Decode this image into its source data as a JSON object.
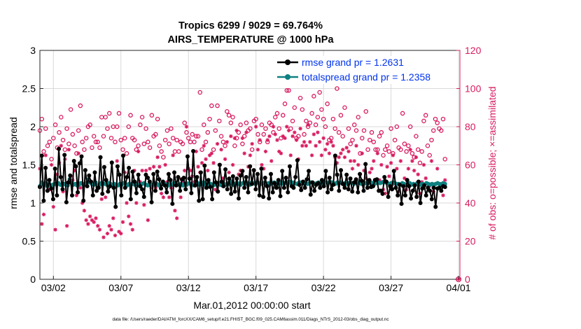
{
  "chart_data": {
    "type": "line",
    "title": "Tropics 6299 / 9029 = 69.764%",
    "subtitle": "AIRS_TEMPERATURE @ 1000 hPa",
    "xlabel": "Mar.01,2012 00:00:00 start",
    "ylabel_left": "rmse and totalspread",
    "ylabel_right": "# of obs: o=possible; ×=assimilated",
    "footnote": "data file: /Users/raeder/DAI/ATM_forcXX/CAM6_setup/f.e21.FHIST_BGC.f09_025.CAM6assim.011/Diags_NTrS_2012-03/obs_diag_output.nc",
    "xlim": [
      0,
      31.1
    ],
    "ylim_left": [
      0,
      3
    ],
    "ylim_right": [
      0,
      120
    ],
    "x_ticks": [
      1,
      6,
      11,
      16,
      21,
      26,
      31
    ],
    "x_tick_labels": [
      "03/02",
      "03/07",
      "03/12",
      "03/17",
      "03/22",
      "03/27",
      "04/01"
    ],
    "y_ticks_left": [
      "0",
      "0.5",
      "1",
      "1.5",
      "2",
      "2.5",
      "3"
    ],
    "y_ticks_right": [
      "0",
      "20",
      "40",
      "60",
      "80",
      "100",
      "120"
    ],
    "grid": true,
    "legend_position": "top-right",
    "colors": {
      "rmse": "#000000",
      "totalspread": "#0f8080",
      "obs": "#d81b60",
      "legend_text": "#0033ee",
      "right_axis": "#d81b60"
    },
    "series": [
      {
        "name": "rmse grand pr = 1.2631",
        "axis": "left",
        "values": [
          1.21,
          1.62,
          1.03,
          1.46,
          1.16,
          1.3,
          1.19,
          1.05,
          1.45,
          1.1,
          1.71,
          1.34,
          1.18,
          1.63,
          1.01,
          1.27,
          1.36,
          1.1,
          1.55,
          1.48,
          1.14,
          1.52,
          1.61,
          1.03,
          1.43,
          1.22,
          1.36,
          1.28,
          1.1,
          1.4,
          1.16,
          1.2,
          1.6,
          1.12,
          1.47,
          1.3,
          1.15,
          1.22,
          1.53,
          1.2,
          0.95,
          1.48,
          1.37,
          1.1,
          1.62,
          1.2,
          1.34,
          1.46,
          1.05,
          1.41,
          1.28,
          1.13,
          1.37,
          1.22,
          1.18,
          1.08,
          1.37,
          1.33,
          1.28,
          1.01,
          1.38,
          1.16,
          1.41,
          1.31,
          1.19,
          1.28,
          1.23,
          1.14,
          1.38,
          1.3,
          0.99,
          1.4,
          1.23,
          1.34,
          1.16,
          1.31,
          1.33,
          1.18,
          1.61,
          1.32,
          1.13,
          1.68,
          1.23,
          1.34,
          1.03,
          1.4,
          1.05,
          1.49,
          1.2,
          1.3,
          1.21,
          1.05,
          1.4,
          1.27,
          1.15,
          1.5,
          1.28,
          1.22,
          1.44,
          1.18,
          1.32,
          1.12,
          1.35,
          1.15,
          1.32,
          1.06,
          1.36,
          1.42,
          1.2,
          1.34,
          1.14,
          1.48,
          1.25,
          1.43,
          1.18,
          1.38,
          1.1,
          1.45,
          1.08,
          1.33,
          1.22,
          1.06,
          1.38,
          1.14,
          1.26,
          1.2,
          1.3,
          1.09,
          1.42,
          1.2,
          1.33,
          1.14,
          1.48,
          1.22,
          1.2,
          1.34,
          1.56,
          1.24,
          1.17,
          1.28,
          1.2,
          1.31,
          1.42,
          1.11,
          1.27,
          1.16,
          1.24,
          1.26,
          1.2,
          1.3,
          1.22,
          1.42,
          1.14,
          1.33,
          1.18,
          1.24,
          1.62,
          1.37,
          1.16,
          1.43,
          1.25,
          1.2,
          1.37,
          1.18,
          1.32,
          1.15,
          1.27,
          1.31,
          1.14,
          1.38,
          1.29,
          1.16,
          1.51,
          1.2,
          1.3,
          1.21,
          1.22,
          1.3,
          1.31,
          1.16,
          1.16,
          1.12,
          1.34,
          1.28,
          1.08,
          1.22,
          1.18,
          1.42,
          1.2,
          1.1,
          1.24,
          0.99,
          1.22,
          1.1,
          1.3,
          1.22,
          1.06,
          1.16,
          1.23,
          1.08,
          1.28,
          1.0,
          1.19,
          1.23,
          1.1,
          1.2,
          1.16,
          1.05,
          1.2,
          0.95,
          1.19,
          1.2,
          1.16,
          1.22,
          1.21
        ]
      },
      {
        "name": "totalspread grand pr = 1.2358",
        "axis": "left",
        "values": [
          1.22,
          1.27,
          1.24,
          1.26,
          1.22,
          1.25,
          1.23,
          1.24,
          1.25,
          1.24,
          1.26,
          1.24,
          1.23,
          1.25,
          1.24,
          1.23,
          1.31,
          1.26,
          1.24,
          1.25,
          1.23,
          1.24,
          1.26,
          1.25,
          1.24,
          1.26,
          1.31,
          1.27,
          1.25,
          1.24,
          1.27,
          1.23,
          1.24,
          1.26,
          1.25,
          1.25,
          1.24,
          1.26,
          1.25,
          1.24,
          1.25,
          1.24,
          1.23,
          1.25,
          1.24,
          1.26,
          1.25,
          1.23,
          1.25,
          1.24,
          1.26,
          1.24,
          1.25,
          1.23,
          1.24,
          1.25,
          1.26,
          1.24,
          1.23,
          1.25,
          1.24,
          1.24,
          1.26,
          1.25,
          1.23,
          1.24,
          1.25,
          1.26,
          1.24,
          1.23,
          1.25,
          1.24,
          1.26,
          1.25,
          1.24,
          1.24,
          1.25,
          1.23,
          1.25,
          1.24,
          1.26,
          1.25,
          1.24,
          1.23,
          1.25,
          1.26,
          1.24,
          1.25,
          1.27,
          1.24,
          1.24,
          1.26,
          1.25,
          1.23,
          1.24,
          1.25,
          1.26,
          1.24,
          1.23,
          1.25,
          1.24,
          1.26,
          1.25,
          1.28,
          1.24,
          1.25,
          1.27,
          1.25,
          1.24,
          1.26,
          1.27,
          1.25,
          1.26,
          1.24,
          1.27,
          1.26,
          1.25,
          1.27,
          1.26,
          1.25,
          1.26,
          1.27,
          1.25,
          1.26,
          1.25,
          1.26,
          1.27,
          1.26,
          1.25,
          1.26,
          1.27,
          1.25,
          1.26,
          1.27,
          1.28,
          1.26,
          1.27,
          1.26,
          1.25,
          1.26,
          1.27,
          1.26,
          1.27,
          1.26,
          1.25,
          1.26,
          1.27,
          1.26,
          1.25,
          1.26,
          1.27,
          1.26,
          1.25,
          1.26,
          1.27,
          1.26,
          1.28,
          1.27,
          1.26,
          1.25,
          1.27,
          1.26,
          1.27,
          1.25,
          1.26,
          1.25,
          1.26,
          1.27,
          1.26,
          1.25,
          1.26,
          1.27,
          1.26,
          1.25,
          1.27,
          1.26,
          1.25,
          1.26,
          1.27,
          1.26,
          1.25,
          1.26,
          1.27,
          1.26,
          1.27,
          1.28,
          1.27,
          1.26,
          1.25,
          1.26,
          1.27,
          1.26,
          1.25,
          1.25,
          1.24,
          1.26,
          1.25,
          1.24,
          1.25,
          1.26,
          1.24,
          1.25,
          1.24,
          1.26,
          1.25,
          1.24,
          1.25,
          1.24,
          1.26,
          1.25,
          1.24,
          1.25,
          1.24,
          1.25,
          1.26,
          1.25,
          1.24,
          1.26,
          1.25
        ]
      },
      {
        "name": "possible",
        "axis": "right",
        "marker": "o",
        "values": [
          78,
          84,
          67,
          79,
          70,
          72,
          63,
          74,
          81,
          69,
          77,
          85,
          73,
          68,
          79,
          71,
          89,
          76,
          70,
          66,
          78,
          91,
          72,
          68,
          74,
          80,
          81,
          69,
          75,
          72,
          72,
          69,
          85,
          75,
          85,
          79,
          87,
          74,
          80,
          72,
          80,
          87,
          73,
          68,
          74,
          66,
          80,
          86,
          74,
          73,
          68,
          70,
          81,
          85,
          71,
          79,
          72,
          69,
          86,
          75,
          76,
          84,
          70,
          67,
          64,
          73,
          78,
          71,
          79,
          74,
          67,
          73,
          67,
          72,
          71,
          82,
          77,
          74,
          72,
          76,
          72,
          75,
          75,
          98,
          68,
          81,
          72,
          77,
          84,
          91,
          68,
          78,
          91,
          83,
          75,
          72,
          70,
          88,
          86,
          82,
          85,
          70,
          74,
          77,
          81,
          71,
          75,
          82,
          78,
          79,
          68,
          83,
          84,
          76,
          72,
          81,
          76,
          79,
          72,
          82,
          81,
          77,
          85,
          87,
          79,
          74,
          86,
          92,
          99,
          99,
          79,
          83,
          90,
          74,
          75,
          95,
          89,
          76,
          83,
          80,
          82,
          87,
          96,
          81,
          85,
          98,
          89,
          84,
          80,
          92,
          73,
          74,
          84,
          79,
          100,
          77,
          86,
          75,
          90,
          104,
          79,
          71,
          73,
          81,
          78,
          85,
          66,
          74,
          78,
          88,
          68,
          73,
          77,
          72,
          68,
          68,
          75,
          77,
          65,
          68,
          70,
          67,
          79,
          66,
          73,
          80,
          69,
          68,
          87,
          71,
          67,
          70,
          80,
          66,
          64,
          75,
          68,
          61,
          67,
          83,
          86,
          70,
          65,
          73,
          78,
          84,
          82,
          79,
          78,
          84,
          63
        ]
      },
      {
        "name": "assimilated",
        "axis": "right",
        "marker": "*",
        "values": [
          58,
          29,
          34,
          65,
          50,
          47,
          60,
          38,
          26,
          55,
          61,
          70,
          46,
          63,
          28,
          68,
          54,
          52,
          57,
          44,
          66,
          48,
          40,
          36,
          31,
          29,
          33,
          31,
          30,
          32,
          28,
          26,
          42,
          22,
          43,
          24,
          28,
          26,
          32,
          23,
          62,
          25,
          24,
          30,
          56,
          40,
          33,
          29,
          26,
          57,
          40,
          67,
          51,
          57,
          39,
          57,
          31,
          58,
          48,
          59,
          48,
          64,
          59,
          45,
          43,
          60,
          51,
          43,
          48,
          65,
          36,
          32,
          53,
          43,
          51,
          57,
          80,
          58,
          57,
          54,
          51,
          67,
          59,
          56,
          61,
          70,
          63,
          57,
          65,
          66,
          61,
          47,
          71,
          60,
          68,
          53,
          63,
          72,
          56,
          75,
          60,
          74,
          78,
          55,
          57,
          74,
          66,
          77,
          59,
          65,
          71,
          57,
          80,
          68,
          73,
          60,
          58,
          67,
          73,
          75,
          62,
          80,
          76,
          73,
          67,
          66,
          75,
          74,
          80,
          78,
          65,
          75,
          77,
          73,
          63,
          79,
          70,
          72,
          70,
          81,
          72,
          65,
          76,
          70,
          77,
          72,
          65,
          74,
          68,
          71,
          66,
          72,
          70,
          64,
          61,
          64,
          66,
          68,
          64,
          69,
          67,
          62,
          58,
          62,
          70,
          60,
          55,
          66,
          57,
          53,
          48,
          56,
          58,
          62,
          51,
          66,
          52,
          60,
          47,
          45,
          59,
          54,
          61,
          65,
          50,
          58,
          46,
          62,
          49,
          53,
          47,
          58,
          68,
          62,
          57,
          64,
          55,
          45,
          51,
          60,
          53,
          48,
          49,
          62,
          46,
          50,
          58,
          48,
          50,
          44,
          52
        ]
      }
    ]
  }
}
